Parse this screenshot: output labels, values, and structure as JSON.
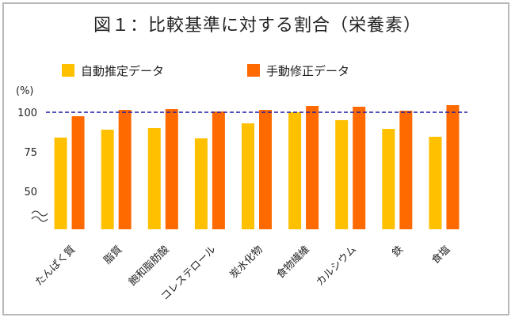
{
  "chart_data": {
    "type": "bar",
    "title": "図１：比較基準に対する割合（栄養素）",
    "ylabel": "(%)",
    "xlabel": "",
    "ylim": [
      40,
      105
    ],
    "yticks": [
      "100",
      "75",
      "50"
    ],
    "reference_line": 100,
    "categories": [
      "たんぱく質",
      "脂質",
      "飽和脂肪酸",
      "コレステロール",
      "炭水化物",
      "食物繊維",
      "カルシウム",
      "鉄",
      "食塩"
    ],
    "series": [
      {
        "name": "自動推定データ",
        "color": "#ffc000",
        "values": [
          84,
          89,
          90,
          83.5,
          93,
          100,
          95,
          89.5,
          84.5
        ]
      },
      {
        "name": "手動修正データ",
        "color": "#ff6a00",
        "values": [
          97.5,
          101.5,
          102,
          100.5,
          101.5,
          104,
          103.5,
          101,
          104.5
        ]
      }
    ]
  }
}
